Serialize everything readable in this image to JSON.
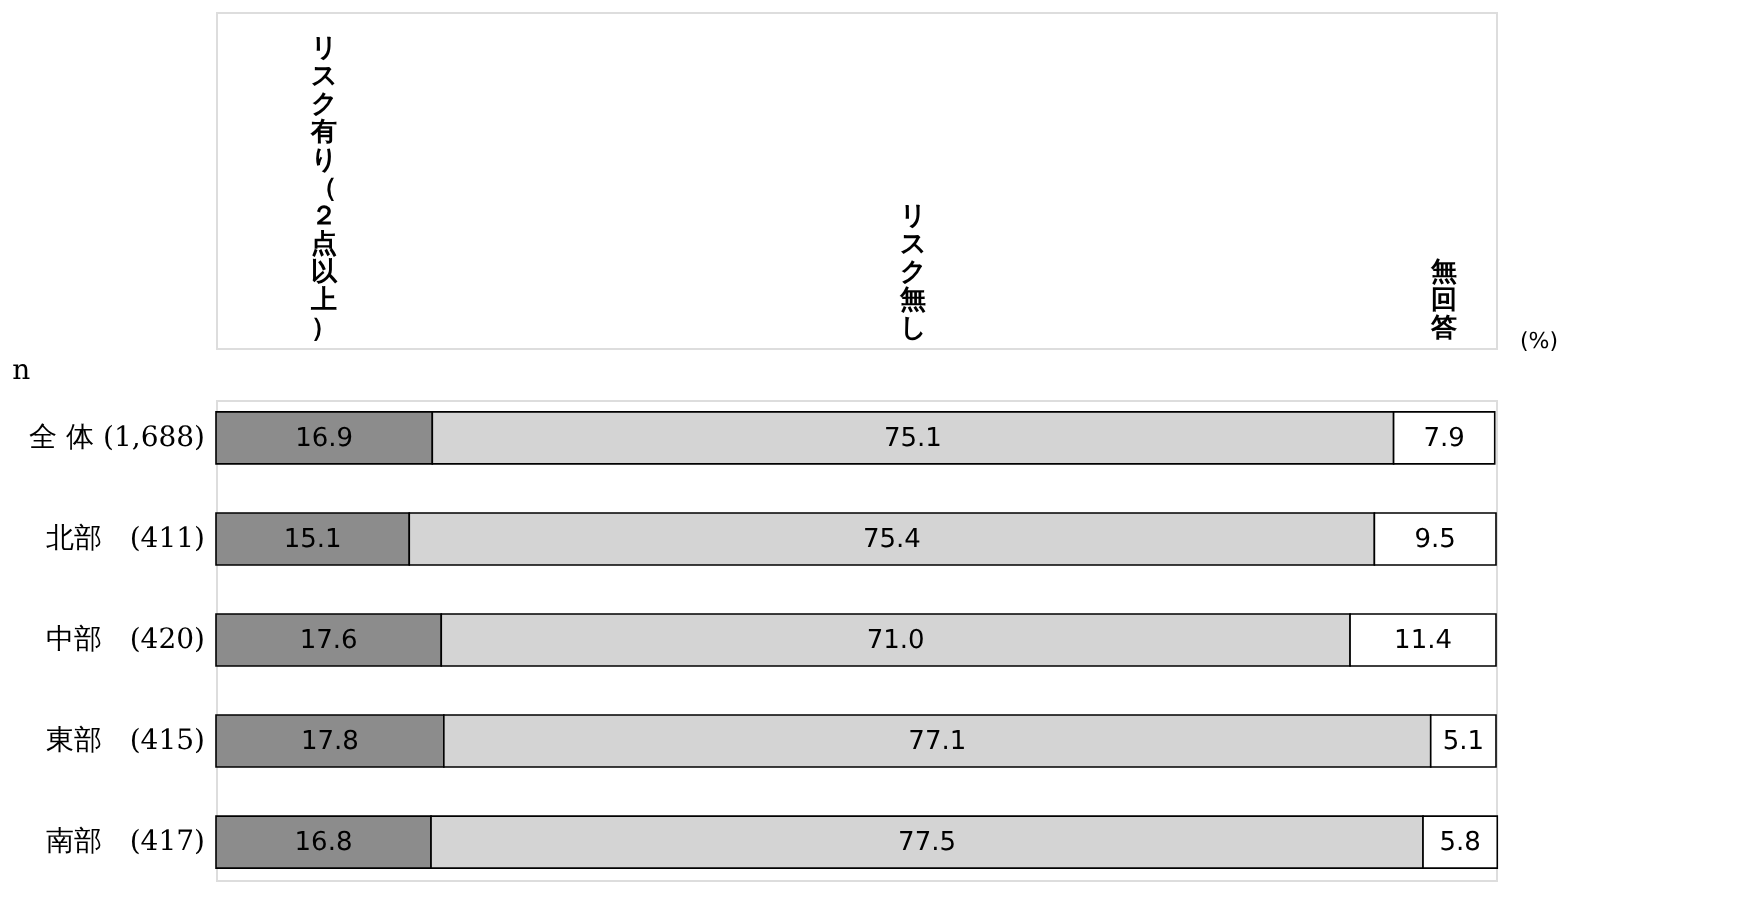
{
  "chart_data": {
    "type": "bar",
    "orientation": "horizontal",
    "stacked": true,
    "grid": false,
    "tick_labels": "y",
    "ylabel": "n",
    "categories": [
      "全 体 (1,688)",
      "北部　(411)",
      "中部　(420)",
      "東部　(415)",
      "南部　(417)"
    ],
    "xlim": [
      0,
      100
    ],
    "annotations": [
      "(%)"
    ],
    "series": [
      {
        "name": "リスク有り（２点以上）",
        "color": "#8c8c8c",
        "values": [
          16.9,
          15.1,
          17.6,
          17.8,
          16.8
        ],
        "value_labels": [
          "16.9",
          "15.1",
          "17.6",
          "17.8",
          "16.8"
        ]
      },
      {
        "name": "リスク無し",
        "color": "#d4d4d4",
        "values": [
          75.1,
          75.4,
          71.0,
          77.1,
          77.5
        ],
        "value_labels": [
          "75.1",
          "75.4",
          "71.0",
          "77.1",
          "77.5"
        ]
      },
      {
        "name": "無回答",
        "color": "#ffffff",
        "values": [
          7.9,
          9.5,
          11.4,
          5.1,
          5.8
        ],
        "value_labels": [
          "7.9",
          "9.5",
          "11.4",
          "5.1",
          "5.8"
        ]
      }
    ]
  }
}
